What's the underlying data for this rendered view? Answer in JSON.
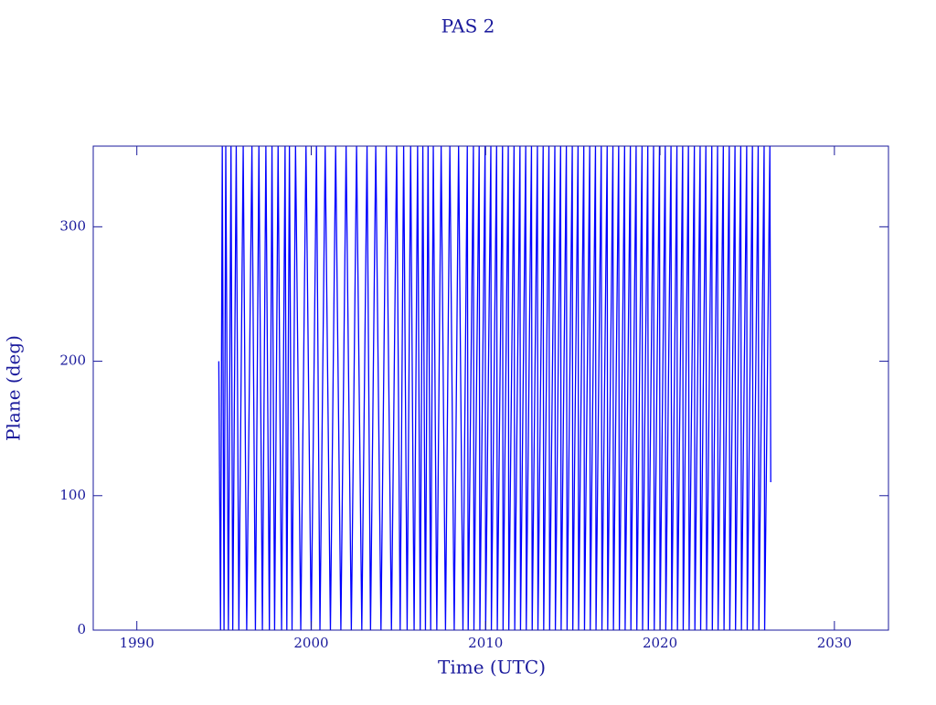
{
  "chart_data": {
    "type": "line",
    "title": "PAS 2",
    "x_label": "Time (UTC)",
    "y_label": "Plane (deg)",
    "color": "#0000ff",
    "axis_color": "#1a1a9c",
    "xlim": [
      1987.5,
      2033.1
    ],
    "xticks": [
      1990,
      2000,
      2010,
      2020,
      2030
    ],
    "ylim": [
      0,
      360
    ],
    "yticks": [
      0,
      100,
      200,
      300
    ],
    "x": [
      1994.7,
      1994.8,
      1994.9,
      1995.0,
      1995.1,
      1995.25,
      1995.4,
      1995.5,
      1995.7,
      1995.85,
      1996.1,
      1996.3,
      1996.6,
      1996.8,
      1997.0,
      1997.2,
      1997.4,
      1997.6,
      1997.75,
      1997.9,
      1998.1,
      1998.3,
      1998.5,
      1998.6,
      1998.75,
      1998.9,
      1999.1,
      1999.4,
      1999.7,
      2000.0,
      2000.3,
      2000.5,
      2000.8,
      2001.1,
      2001.4,
      2001.7,
      2002.0,
      2002.3,
      2002.6,
      2002.9,
      2003.2,
      2003.4,
      2003.7,
      2004.0,
      2004.3,
      2004.6,
      2004.9,
      2005.1,
      2005.3,
      2005.5,
      2005.7,
      2005.9,
      2006.1,
      2006.25,
      2006.4,
      2006.55,
      2006.7,
      2006.85,
      2007.0,
      2007.2,
      2007.45,
      2007.7,
      2007.95,
      2008.2,
      2008.45,
      2008.7,
      2008.95,
      2009.0,
      2009.3,
      2009.33,
      2009.63,
      2009.67,
      2009.97,
      2010.0,
      2010.3,
      2010.33,
      2010.63,
      2010.67,
      2010.97,
      2011.0,
      2011.3,
      2011.33,
      2011.63,
      2011.67,
      2011.97,
      2012.0,
      2012.3,
      2012.33,
      2012.63,
      2012.67,
      2012.97,
      2013.0,
      2013.3,
      2013.33,
      2013.63,
      2013.67,
      2013.97,
      2014.0,
      2014.3,
      2014.33,
      2014.63,
      2014.67,
      2014.97,
      2015.0,
      2015.3,
      2015.33,
      2015.63,
      2015.67,
      2015.97,
      2016.0,
      2016.3,
      2016.33,
      2016.63,
      2016.67,
      2016.97,
      2017.0,
      2017.3,
      2017.33,
      2017.63,
      2017.67,
      2017.97,
      2018.0,
      2018.3,
      2018.33,
      2018.63,
      2018.67,
      2018.97,
      2019.0,
      2019.3,
      2019.33,
      2019.63,
      2019.67,
      2019.97,
      2020.0,
      2020.3,
      2020.33,
      2020.63,
      2020.67,
      2020.97,
      2021.0,
      2021.3,
      2021.33,
      2021.63,
      2021.67,
      2021.97,
      2022.0,
      2022.3,
      2022.33,
      2022.63,
      2022.67,
      2022.97,
      2023.0,
      2023.3,
      2023.33,
      2023.63,
      2023.67,
      2023.97,
      2024.0,
      2024.3,
      2024.33,
      2024.63,
      2024.67,
      2024.97,
      2025.0,
      2025.3,
      2025.33,
      2025.63,
      2025.67,
      2025.97,
      2026.0,
      2026.3,
      2026.35
    ],
    "values": [
      200,
      0,
      360,
      0,
      360,
      0,
      360,
      0,
      360,
      0,
      360,
      0,
      360,
      0,
      360,
      0,
      360,
      0,
      360,
      0,
      360,
      0,
      360,
      0,
      360,
      0,
      360,
      0,
      360,
      0,
      360,
      0,
      360,
      0,
      360,
      0,
      360,
      0,
      360,
      0,
      360,
      0,
      360,
      0,
      360,
      0,
      360,
      0,
      360,
      0,
      360,
      0,
      360,
      0,
      360,
      0,
      360,
      0,
      360,
      0,
      360,
      0,
      360,
      0,
      360,
      0,
      360,
      0,
      360,
      0,
      360,
      0,
      360,
      0,
      360,
      0,
      360,
      0,
      360,
      0,
      360,
      0,
      360,
      0,
      360,
      0,
      360,
      0,
      360,
      0,
      360,
      0,
      360,
      0,
      360,
      0,
      360,
      0,
      360,
      0,
      360,
      0,
      360,
      0,
      360,
      0,
      360,
      0,
      360,
      0,
      360,
      0,
      360,
      0,
      360,
      0,
      360,
      0,
      360,
      0,
      360,
      0,
      360,
      0,
      360,
      0,
      360,
      0,
      360,
      0,
      360,
      0,
      360,
      0,
      360,
      0,
      360,
      0,
      360,
      0,
      360,
      0,
      360,
      0,
      360,
      0,
      360,
      0,
      360,
      0,
      360,
      0,
      360,
      0,
      360,
      0,
      360,
      0,
      360,
      0,
      360,
      0,
      360,
      0,
      360,
      0,
      360,
      0,
      360,
      0,
      360,
      110
    ]
  }
}
